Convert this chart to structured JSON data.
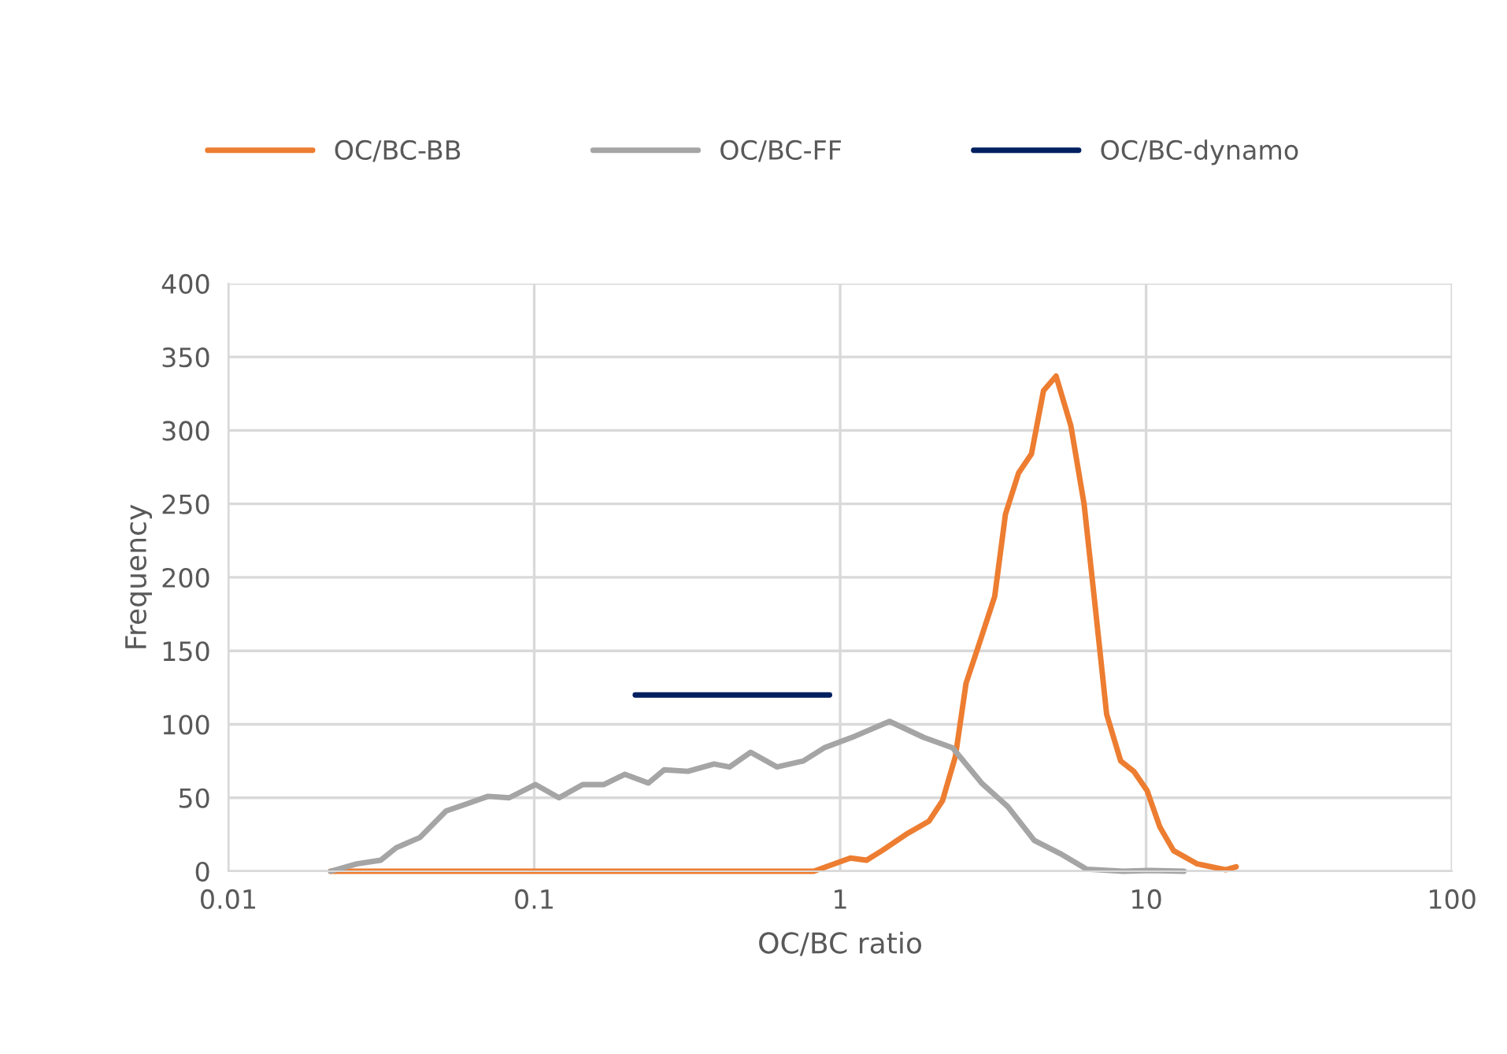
{
  "chart_data": {
    "type": "line",
    "xlabel": "OC/BC ratio",
    "ylabel": "Frequency",
    "log": "x",
    "xlim": [
      0.01,
      100
    ],
    "xticks": [
      0.01,
      0.1,
      1,
      10,
      100
    ],
    "ylim": [
      0,
      400
    ],
    "yticks": [
      0,
      50,
      100,
      150,
      200,
      250,
      300,
      350,
      400
    ],
    "grid": true,
    "legend": "top",
    "marker": "none",
    "line_style": "solid",
    "series": [
      {
        "name": "OC/BC-BB",
        "color": "#ed7d31",
        "x": [
          0.0216,
          0.82,
          1.08,
          1.22,
          1.37,
          1.64,
          1.95,
          2.16,
          2.38,
          2.58,
          2.85,
          3.2,
          3.47,
          3.83,
          4.22,
          4.62,
          5.08,
          5.68,
          6.27,
          6.78,
          7.43,
          8.26,
          9.12,
          10.07,
          11.1,
          12.3,
          14.7,
          18.2,
          19.7
        ],
        "values": [
          0,
          0,
          9,
          7.5,
          14,
          25,
          34,
          48,
          78,
          128,
          155,
          187,
          243,
          271,
          284,
          327,
          337,
          303,
          250,
          185,
          107,
          75,
          68,
          55,
          30,
          14,
          5,
          1,
          3
        ]
      },
      {
        "name": "OC/BC-FF",
        "color": "#a5a5a5",
        "x": [
          0.0216,
          0.0263,
          0.0315,
          0.0354,
          0.0423,
          0.0515,
          0.0604,
          0.0707,
          0.0828,
          0.101,
          0.1205,
          0.144,
          0.169,
          0.198,
          0.236,
          0.266,
          0.318,
          0.387,
          0.435,
          0.51,
          0.621,
          0.757,
          0.887,
          1.12,
          1.45,
          1.88,
          2.33,
          2.9,
          3.53,
          4.31,
          5.24,
          6.4,
          8.43,
          10.3,
          13.3
        ],
        "values": [
          0,
          5,
          7.5,
          16,
          23,
          41,
          46,
          51,
          50,
          59,
          50,
          59,
          59,
          66,
          60,
          69,
          68,
          73,
          71,
          81,
          71,
          75,
          84,
          92,
          102,
          91,
          84,
          60,
          44,
          21,
          12,
          1.4,
          0,
          0.5,
          0
        ]
      },
      {
        "name": "OC/BC-dynamo",
        "color": "#002060",
        "x": [
          0.214,
          0.923
        ],
        "values": [
          120,
          120
        ]
      }
    ]
  }
}
